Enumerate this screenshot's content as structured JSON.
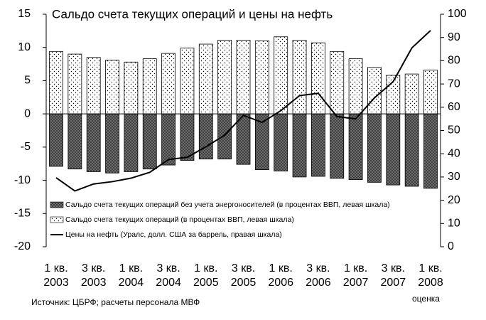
{
  "chart_data": {
    "type": "bar_line",
    "title": "Сальдо счета текущих операций и цены на нефть",
    "categories": [
      "1 кв. 2003",
      null,
      "3 кв. 2003",
      null,
      "1 кв. 2004",
      null,
      "3 кв. 2004",
      null,
      "1 кв. 2005",
      null,
      "3 кв. 2005",
      null,
      "1 кв. 2006",
      null,
      "3 кв. 2006",
      null,
      "1 кв. 2007",
      null,
      "3 кв. 2007",
      null,
      "1 кв. 2008"
    ],
    "series": [
      {
        "name": "Сальдо счета текущих операций без учета энергоносителей (в процентах ВВП, левая шкала)",
        "type": "bar",
        "pattern": "crosshatch",
        "color": "#7a7a7a",
        "values": [
          -7.9,
          -8.3,
          -8.7,
          -8.9,
          -8.7,
          -8.3,
          -7.7,
          -7.0,
          -6.8,
          -6.8,
          -7.6,
          -8.4,
          -8.6,
          -9.5,
          -9.4,
          -9.7,
          -9.9,
          -10.3,
          -10.7,
          -10.9,
          -11.2
        ]
      },
      {
        "name": "Сальдо счета текущих операций (в процентах ВВП, левая шкала)",
        "type": "bar",
        "pattern": "dots",
        "color": "#ffffff",
        "values": [
          9.4,
          9.0,
          8.5,
          8.1,
          7.8,
          8.3,
          9.1,
          9.9,
          10.5,
          11.1,
          11.1,
          11.0,
          11.6,
          11.1,
          10.7,
          9.4,
          8.3,
          7.0,
          5.8,
          6.0,
          6.6
        ]
      },
      {
        "name": "Цены на нефть (Уралс, долл. США за баррель, правая шкала)",
        "type": "line",
        "axis": "y2",
        "color": "#000000",
        "values": [
          29.7,
          24,
          27,
          28,
          29.5,
          32,
          37.5,
          38.5,
          43,
          48,
          56.5,
          53.5,
          58.5,
          65,
          66,
          56,
          55,
          64,
          71,
          85.5,
          93
        ]
      }
    ],
    "ylim": [
      -20,
      15
    ],
    "yticks": [
      15,
      10,
      5,
      0,
      -5,
      -10,
      -15,
      -20
    ],
    "y2lim": [
      0,
      100
    ],
    "y2ticks": [
      100,
      90,
      80,
      70,
      60,
      50,
      40,
      30,
      20,
      10,
      0
    ],
    "annotations": [
      "оценка"
    ],
    "source": "Источник: ЦБРФ; расчеты персонала МВФ"
  }
}
